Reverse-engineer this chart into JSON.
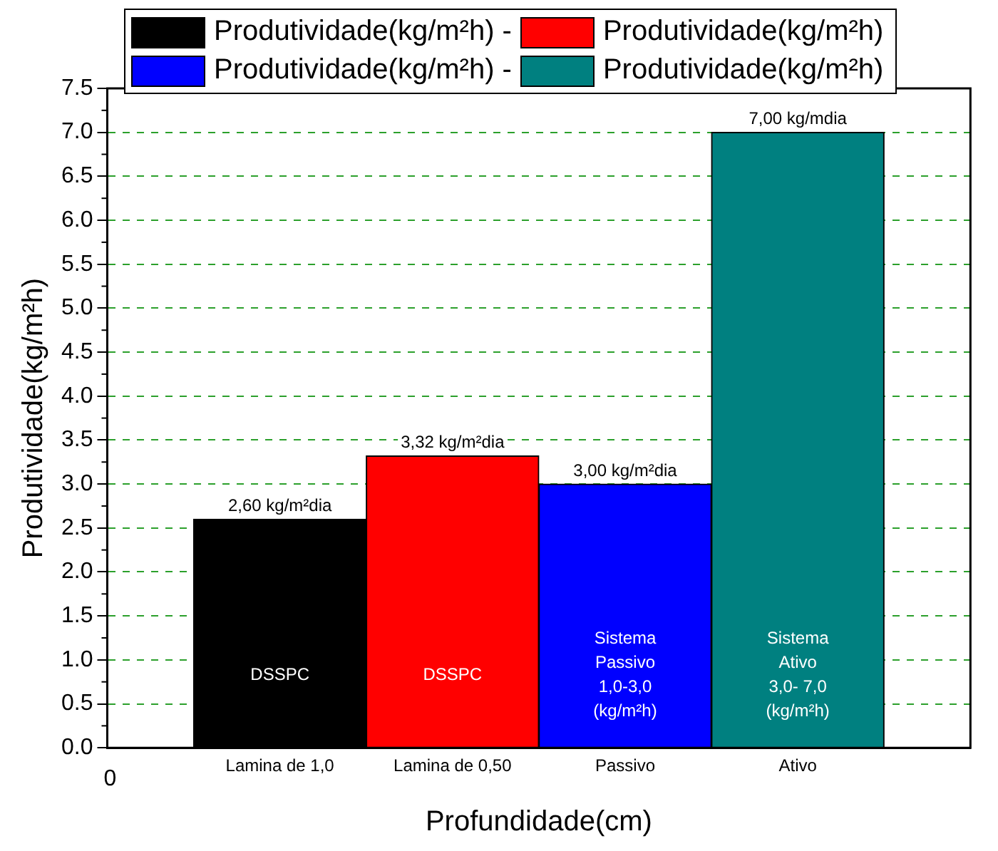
{
  "chart_data": {
    "type": "bar",
    "xlabel": "Profundidade(cm)",
    "ylabel": "Produtividade(kg/m²h)",
    "categories": [
      "Lamina de 1,0",
      "Lamina de 0,50",
      "Passivo",
      "Ativo"
    ],
    "ylim": [
      0,
      7.5
    ],
    "yticks": [
      {
        "value": 0,
        "label": "0.0"
      },
      {
        "value": 0.5,
        "label": "0.5"
      },
      {
        "value": 1,
        "label": "1.0"
      },
      {
        "value": 1.5,
        "label": "1.5"
      },
      {
        "value": 2,
        "label": "2.0"
      },
      {
        "value": 2.5,
        "label": "2.5"
      },
      {
        "value": 3,
        "label": "3.0"
      },
      {
        "value": 3.5,
        "label": "3.5"
      },
      {
        "value": 4,
        "label": "4.0"
      },
      {
        "value": 4.5,
        "label": "4.5"
      },
      {
        "value": 5,
        "label": "5.0"
      },
      {
        "value": 5.5,
        "label": "5.5"
      },
      {
        "value": 6,
        "label": "6.0"
      },
      {
        "value": 6.5,
        "label": "6.5"
      },
      {
        "value": 7,
        "label": "7.0"
      },
      {
        "value": 7.5,
        "label": "7.5"
      }
    ],
    "grid": "y",
    "legend": "top",
    "series": [
      {
        "name": "Produtividade(kg/m²h) -",
        "color": "#000000",
        "values": [
          2.6,
          null,
          null,
          null
        ],
        "value_labels": [
          "2,60 kg/m²dia",
          null,
          null,
          null
        ]
      },
      {
        "name": "Produtividade(kg/m²h)",
        "color": "#ff0000",
        "values": [
          null,
          3.32,
          null,
          null
        ],
        "value_labels": [
          null,
          "3,32 kg/m²dia",
          null,
          null
        ]
      },
      {
        "name": "Produtividade(kg/m²h) -",
        "color": "#0000ff",
        "values": [
          null,
          null,
          3.0,
          null
        ],
        "value_labels": [
          null,
          null,
          "3,00 kg/m²dia",
          null
        ]
      },
      {
        "name": "Produtividade(kg/m²h)",
        "color": "#008080",
        "values": [
          null,
          null,
          null,
          7.0
        ],
        "value_labels": [
          null,
          null,
          null,
          "7,00 kg/mdia"
        ]
      }
    ],
    "annotations": [
      "0",
      "DSSPC",
      "DSSPC",
      "Sistema\nPassivo\n1,0-3,0\n(kg/m²h)",
      "Sistema\nAtivo\n3,0- 7,0\n(kg/m²h)"
    ]
  }
}
